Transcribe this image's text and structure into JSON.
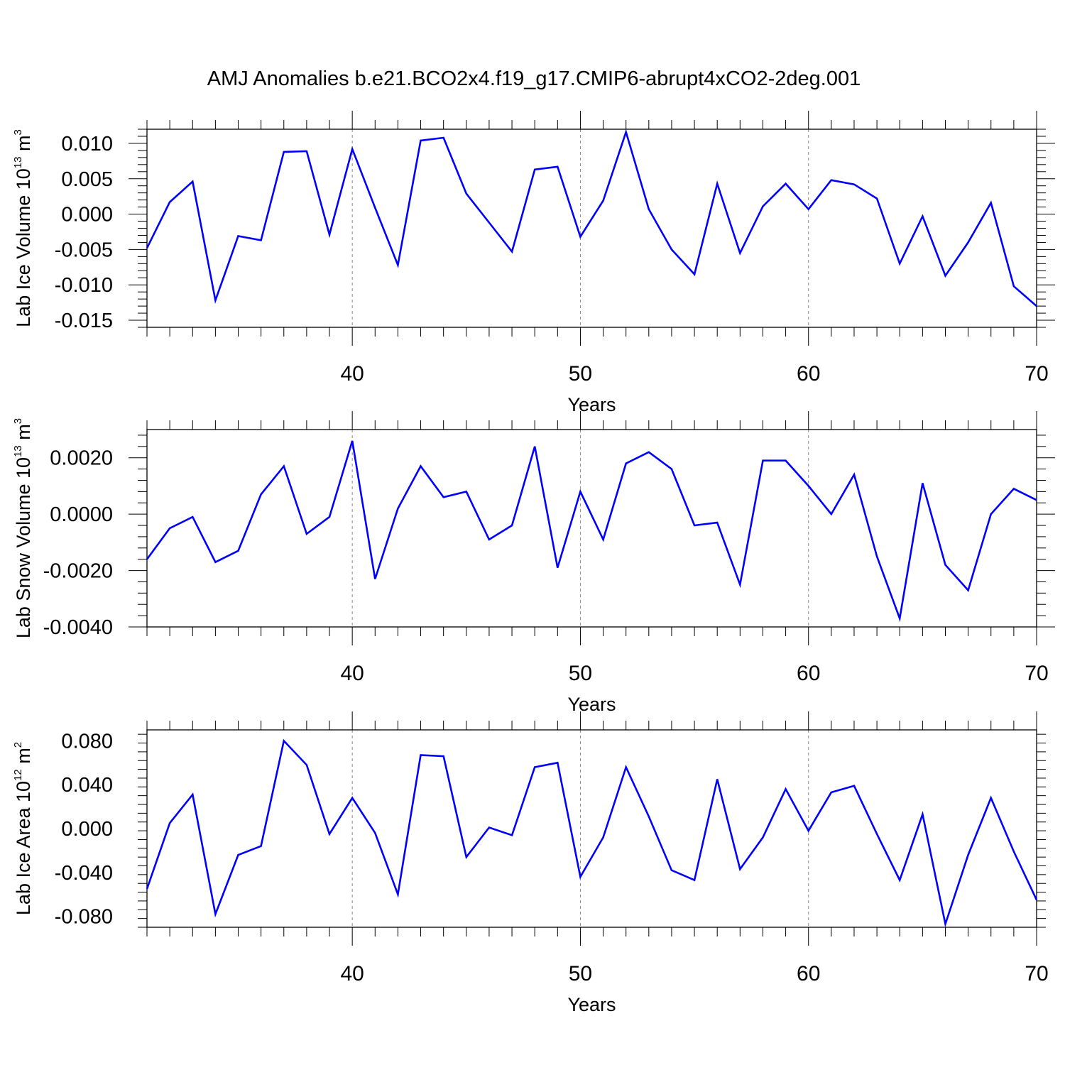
{
  "title": "AMJ Anomalies b.e21.BCO2x4.f19_g17.CMIP6-abrupt4xCO2-2deg.001",
  "colors": {
    "line": "#0000ff",
    "axes": "#000000",
    "grid": "#888888"
  },
  "chart_data": [
    {
      "type": "line",
      "ylabel": {
        "base": "Lab Ice Volume 10",
        "exp1": "13",
        "unit": " m",
        "exp2": "3"
      },
      "xlabel": "Years",
      "xlim": [
        31,
        70
      ],
      "ylim": [
        -0.016,
        0.012
      ],
      "yticks": [
        -0.015,
        -0.01,
        -0.005,
        0.0,
        0.005,
        0.01
      ],
      "ytick_labels": [
        "-0.015",
        "-0.010",
        "-0.005",
        "0.000",
        "0.005",
        "0.010"
      ],
      "xticks": [
        40,
        50,
        60,
        70
      ],
      "xtick_labels": [
        "40",
        "50",
        "60",
        "70"
      ],
      "grid_x": [
        40,
        50,
        60
      ],
      "series": [
        {
          "x": [
            31,
            32,
            33,
            34,
            35,
            36,
            37,
            38,
            39,
            40,
            41,
            42,
            43,
            44,
            45,
            46,
            47,
            48,
            49,
            50,
            51,
            52,
            53,
            54,
            55,
            56,
            57,
            58,
            59,
            60,
            61,
            62,
            63,
            64,
            65,
            66,
            67,
            68,
            69,
            70
          ],
          "values": [
            -0.0048,
            0.0017,
            0.0046,
            -0.0122,
            -0.0031,
            -0.0037,
            0.0088,
            0.0089,
            -0.0029,
            0.0092,
            0.0009,
            -0.0072,
            0.0104,
            0.0108,
            0.0029,
            -0.0012,
            -0.0053,
            0.0063,
            0.0067,
            -0.0032,
            0.0019,
            0.0116,
            0.0007,
            -0.005,
            -0.0085,
            0.0043,
            -0.0055,
            0.0011,
            0.0043,
            0.0007,
            0.0048,
            0.0042,
            0.0022,
            -0.007,
            -0.0003,
            -0.0087,
            -0.004,
            0.0016,
            -0.0102,
            -0.013
          ]
        }
      ]
    },
    {
      "type": "line",
      "ylabel": {
        "base": "Lab Snow Volume 10",
        "exp1": "13",
        "unit": " m",
        "exp2": "3"
      },
      "xlabel": "Years",
      "xlim": [
        31,
        70
      ],
      "ylim": [
        -0.004,
        0.003
      ],
      "yticks": [
        -0.004,
        -0.002,
        0.0,
        0.002
      ],
      "ytick_labels": [
        "-0.0040",
        "-0.0020",
        "0.0000",
        "0.0020"
      ],
      "xticks": [
        40,
        50,
        60,
        70
      ],
      "xtick_labels": [
        "40",
        "50",
        "60",
        "70"
      ],
      "grid_x": [
        40,
        50,
        60
      ],
      "series": [
        {
          "x": [
            31,
            32,
            33,
            34,
            35,
            36,
            37,
            38,
            39,
            40,
            41,
            42,
            43,
            44,
            45,
            46,
            47,
            48,
            49,
            50,
            51,
            52,
            53,
            54,
            55,
            56,
            57,
            58,
            59,
            60,
            61,
            62,
            63,
            64,
            65,
            66,
            67,
            68,
            69,
            70
          ],
          "values": [
            -0.0016,
            -0.0005,
            -0.0001,
            -0.0017,
            -0.0013,
            0.0007,
            0.0017,
            -0.0007,
            -0.0001,
            0.0026,
            -0.0023,
            0.0002,
            0.0017,
            0.0006,
            0.0008,
            -0.0009,
            -0.0004,
            0.0024,
            -0.0019,
            0.0008,
            -0.0009,
            0.0018,
            0.0022,
            0.0016,
            -0.0004,
            -0.0003,
            -0.0025,
            0.0019,
            0.0019,
            0.001,
            0.0,
            0.0014,
            -0.0015,
            -0.0037,
            0.0011,
            -0.0018,
            -0.0027,
            0.0,
            0.0009,
            0.0005
          ]
        }
      ]
    },
    {
      "type": "line",
      "ylabel": {
        "base": "Lab Ice Area 10",
        "exp1": "12",
        "unit": " m",
        "exp2": "2"
      },
      "xlabel": "Years",
      "xlim": [
        31,
        70
      ],
      "ylim": [
        -0.09,
        0.09
      ],
      "yticks": [
        -0.08,
        -0.04,
        0.0,
        0.04,
        0.08
      ],
      "ytick_labels": [
        "-0.080",
        "-0.040",
        "0.000",
        "0.040",
        "0.080"
      ],
      "xticks": [
        40,
        50,
        60,
        70
      ],
      "xtick_labels": [
        "40",
        "50",
        "60",
        "70"
      ],
      "grid_x": [
        40,
        50,
        60
      ],
      "series": [
        {
          "x": [
            31,
            32,
            33,
            34,
            35,
            36,
            37,
            38,
            39,
            40,
            41,
            42,
            43,
            44,
            45,
            46,
            47,
            48,
            49,
            50,
            51,
            52,
            53,
            54,
            55,
            56,
            57,
            58,
            59,
            60,
            61,
            62,
            63,
            64,
            65,
            66,
            67,
            68,
            69,
            70
          ],
          "values": [
            -0.055,
            0.005,
            0.031,
            -0.078,
            -0.024,
            -0.016,
            0.08,
            0.058,
            -0.005,
            0.028,
            -0.004,
            -0.06,
            0.067,
            0.066,
            -0.026,
            0.001,
            -0.006,
            0.056,
            0.06,
            -0.044,
            -0.008,
            0.056,
            0.011,
            -0.038,
            -0.047,
            0.045,
            -0.037,
            -0.008,
            0.036,
            -0.002,
            0.033,
            0.039,
            -0.005,
            -0.047,
            0.013,
            -0.087,
            -0.024,
            0.028,
            -0.021,
            -0.065
          ]
        }
      ]
    }
  ]
}
